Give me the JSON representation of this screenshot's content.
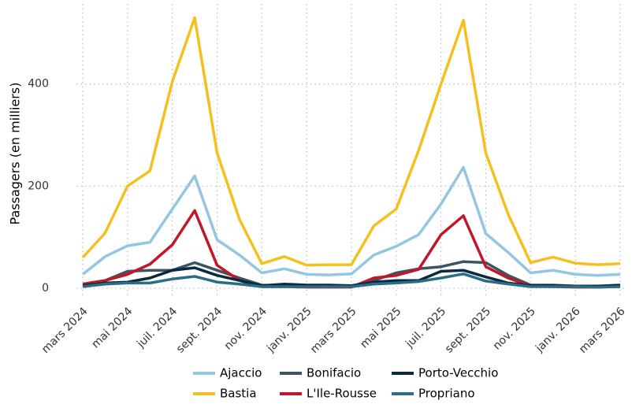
{
  "chart_data": {
    "type": "line",
    "ylabel": "Passagers (en milliers)",
    "categories": [
      "mars 2024",
      null,
      "mai 2024",
      null,
      "juil. 2024",
      null,
      "sept. 2024",
      null,
      "nov. 2024",
      null,
      "janv. 2025",
      null,
      "mars 2025",
      null,
      "mai 2025",
      null,
      "juil. 2025",
      null,
      "sept. 2025",
      null,
      "nov. 2025",
      null,
      "janv. 2026",
      null,
      "mars 2026"
    ],
    "series": [
      {
        "name": "Ajaccio",
        "color": "#93c6e0",
        "values": [
          27,
          62,
          83,
          90,
          155,
          220,
          95,
          65,
          30,
          38,
          27,
          26,
          28,
          65,
          82,
          105,
          165,
          237,
          107,
          70,
          30,
          35,
          27,
          25,
          27
        ]
      },
      {
        "name": "Bastia",
        "color": "#f5c01f",
        "values": [
          60,
          108,
          200,
          230,
          405,
          530,
          265,
          135,
          48,
          62,
          45,
          46,
          46,
          122,
          155,
          270,
          400,
          525,
          265,
          145,
          50,
          61,
          49,
          46,
          48
        ]
      },
      {
        "name": "Bonifacio",
        "color": "#3d5563",
        "values": [
          8,
          15,
          33,
          35,
          35,
          50,
          35,
          20,
          6,
          5,
          4,
          4,
          4,
          15,
          30,
          38,
          42,
          52,
          50,
          25,
          6,
          6,
          4,
          3,
          5
        ]
      },
      {
        "name": "L'Ile-Rousse",
        "color": "#c0182a",
        "values": [
          8,
          15,
          27,
          47,
          85,
          152,
          45,
          15,
          3,
          3,
          2,
          2,
          2,
          20,
          25,
          37,
          105,
          142,
          42,
          20,
          4,
          3,
          2,
          2,
          3
        ]
      },
      {
        "name": "Porto-Vecchio",
        "color": "#0b2a40",
        "values": [
          5,
          10,
          12,
          20,
          35,
          40,
          25,
          15,
          5,
          8,
          6,
          6,
          5,
          12,
          15,
          15,
          33,
          35,
          22,
          10,
          5,
          5,
          4,
          4,
          6
        ]
      },
      {
        "name": "Propriano",
        "color": "#2a6e85",
        "values": [
          3,
          8,
          10,
          10,
          18,
          23,
          12,
          8,
          3,
          3,
          3,
          3,
          3,
          8,
          10,
          13,
          20,
          28,
          14,
          8,
          3,
          3,
          3,
          2,
          3
        ]
      }
    ],
    "ylim": [
      -14,
      557
    ],
    "yticks": [
      0,
      200,
      400
    ],
    "grid": true,
    "legend": "bottom"
  }
}
